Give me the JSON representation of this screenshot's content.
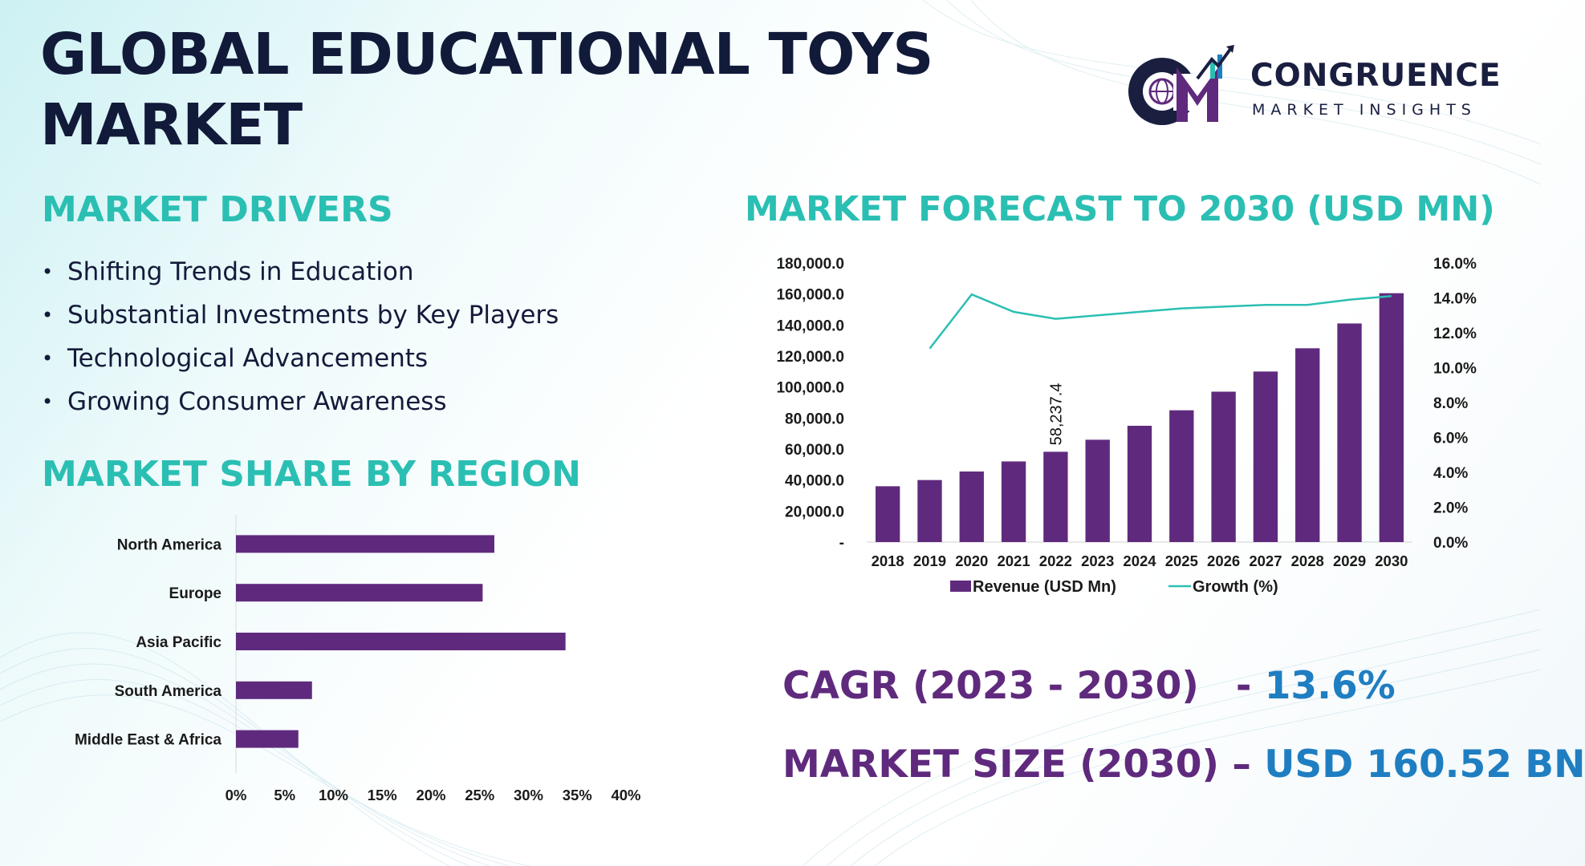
{
  "title": "GLOBAL EDUCATIONAL TOYS MARKET",
  "logo": {
    "name": "CONGRUENCE",
    "subtitle": "MARKET INSIGHTS",
    "mark_text": "CM",
    "colors": {
      "primary": "#5f2a7d",
      "accent": "#2bbfb3",
      "dark": "#1a1f40"
    }
  },
  "drivers": {
    "heading": "MARKET DRIVERS",
    "items": [
      "Shifting Trends in Education",
      "Substantial Investments by Key Players",
      "Technological Advancements",
      "Growing Consumer Awareness"
    ]
  },
  "forecast": {
    "heading": "MARKET FORECAST TO 2030 (USD MN)"
  },
  "region": {
    "heading": "MARKET SHARE BY REGION"
  },
  "stats": {
    "cagr_label": "CAGR (2023 - 2030)",
    "cagr_separator": "- ",
    "cagr_value": "13.6%",
    "size_label": "MARKET SIZE (2030)",
    "size_separator": " – ",
    "size_value": "USD 160.52 BN"
  },
  "colors": {
    "heading": "#2bbfb3",
    "bar": "#5f2a7d",
    "growth_line": "#2bbfb3",
    "title": "#121a3a",
    "value_blue": "#1f7ec1"
  },
  "chart_data": [
    {
      "type": "bar",
      "title": "MARKET FORECAST TO 2030 (USD MN)",
      "categories": [
        "2018",
        "2019",
        "2020",
        "2021",
        "2022",
        "2023",
        "2024",
        "2025",
        "2026",
        "2027",
        "2028",
        "2029",
        "2030"
      ],
      "series": [
        {
          "name": "Revenue (USD Mn)",
          "type": "bar",
          "values": [
            36000,
            40000,
            45500,
            52000,
            58237.4,
            66000,
            75000,
            85000,
            97000,
            110000,
            125000,
            141000,
            160520
          ]
        },
        {
          "name": "Growth (%)",
          "type": "line",
          "axis": "right",
          "values": [
            null,
            11.1,
            14.2,
            13.2,
            12.8,
            13.0,
            13.2,
            13.4,
            13.5,
            13.6,
            13.6,
            13.9,
            14.1
          ]
        }
      ],
      "data_labels": [
        {
          "category": "2022",
          "text": "58,237.4"
        }
      ],
      "ylim": [
        0,
        180000
      ],
      "y_ticks": [
        "-",
        "20,000.0",
        "40,000.0",
        "60,000.0",
        "80,000.0",
        "100,000.0",
        "120,000.0",
        "140,000.0",
        "160,000.0",
        "180,000.0"
      ],
      "y2lim": [
        0,
        16
      ],
      "y2_ticks": [
        "0.0%",
        "2.0%",
        "4.0%",
        "6.0%",
        "8.0%",
        "10.0%",
        "12.0%",
        "14.0%",
        "16.0%"
      ],
      "legend": [
        "Revenue (USD Mn)",
        "Growth (%)"
      ],
      "legend_position": "bottom",
      "grid": false
    },
    {
      "type": "bar",
      "orientation": "horizontal",
      "title": "MARKET SHARE BY REGION",
      "categories": [
        "North America",
        "Europe",
        "Asia Pacific",
        "South America",
        "Middle East & Africa"
      ],
      "values": [
        26.5,
        25.3,
        33.8,
        7.8,
        6.4
      ],
      "xlim": [
        0,
        40
      ],
      "x_ticks": [
        "0%",
        "5%",
        "10%",
        "15%",
        "20%",
        "25%",
        "30%",
        "35%",
        "40%"
      ],
      "grid": false
    }
  ]
}
